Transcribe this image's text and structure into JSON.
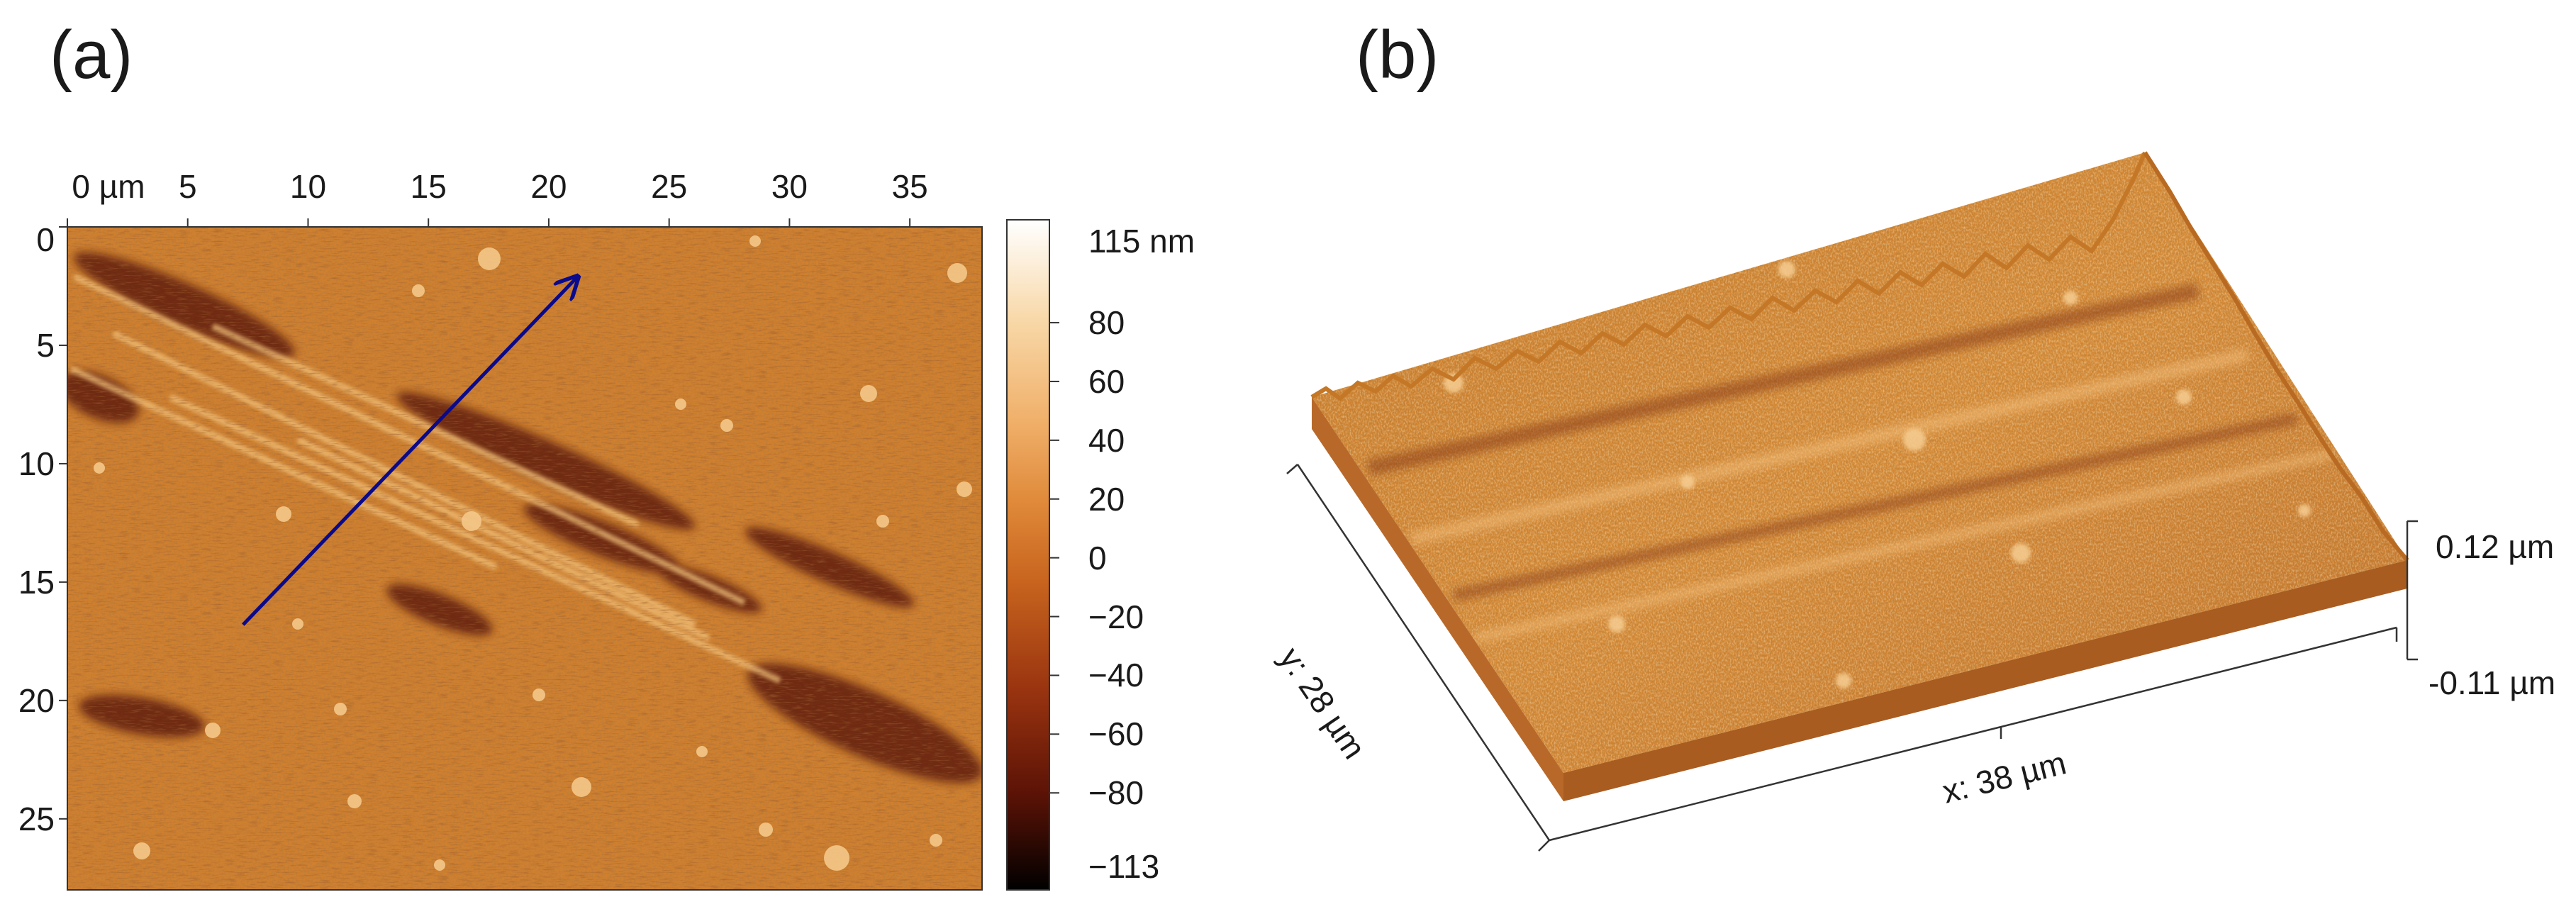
{
  "panel_a": {
    "label": "(a)",
    "x_ticks": [
      "0 µm",
      "5",
      "10",
      "15",
      "20",
      "25",
      "30",
      "35"
    ],
    "x_tick_values": [
      0,
      5,
      10,
      15,
      20,
      25,
      30,
      35
    ],
    "y_ticks": [
      "0",
      "5",
      "10",
      "15",
      "20",
      "25"
    ],
    "y_tick_values": [
      0,
      5,
      10,
      15,
      20,
      25
    ],
    "x_range_um": [
      0,
      38
    ],
    "y_range_um": [
      0,
      28
    ],
    "colorbar": {
      "max_label": "115 nm",
      "min_label": "−113",
      "ticks": [
        "80",
        "60",
        "40",
        "20",
        "0",
        "−20",
        "−40",
        "−60",
        "−80"
      ],
      "tick_values": [
        80,
        60,
        40,
        20,
        0,
        -20,
        -40,
        -60,
        -80
      ],
      "range_nm": [
        -113,
        115
      ],
      "colors": [
        "#000000",
        "#5a1206",
        "#9a3410",
        "#c8641e",
        "#e08a3a",
        "#f0b06a",
        "#f8d8a8",
        "#ffffff"
      ]
    },
    "arrow": {
      "from_um": [
        7.3,
        16.8
      ],
      "to_um": [
        21.2,
        2.1
      ],
      "color": "#0a0a8c"
    }
  },
  "panel_b": {
    "label": "(b)",
    "x_axis": "x: 38 µm",
    "y_axis": "y: 28 µm",
    "z_top": "0.12 µm",
    "z_bottom": "-0.11 µm",
    "surface_color": "#d2852e"
  }
}
